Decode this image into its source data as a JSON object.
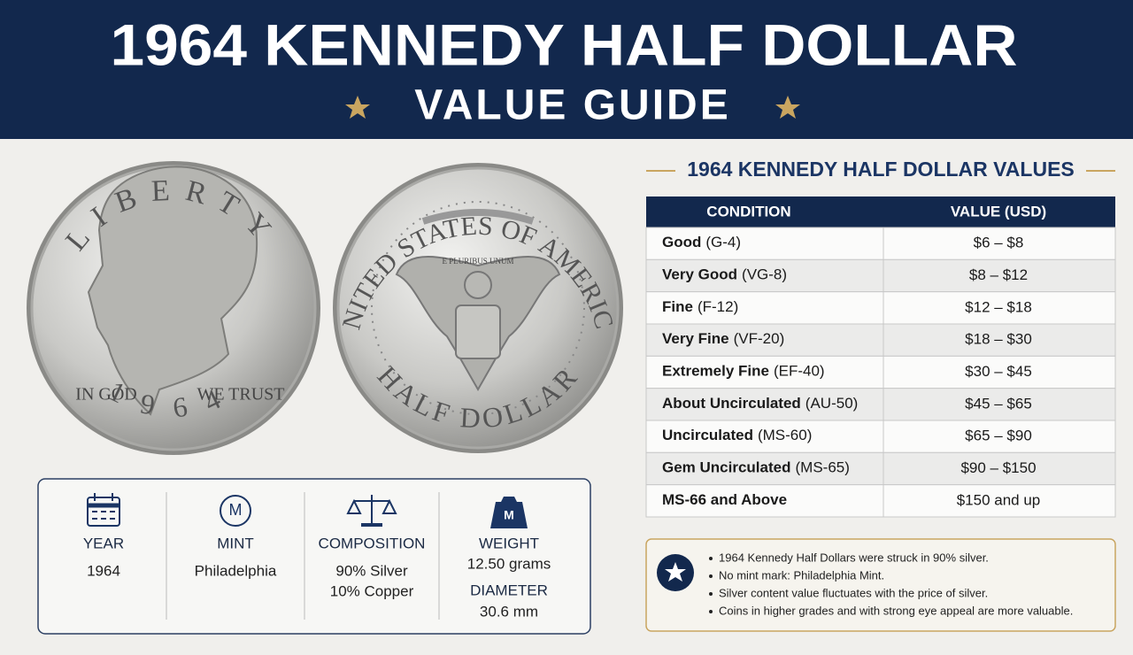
{
  "header": {
    "title": "1964 KENNEDY HALF DOLLAR",
    "subtitle": "VALUE GUIDE"
  },
  "obverse": {
    "top": "LIBERTY",
    "motto_left": "IN GOD",
    "motto_right": "WE TRUST",
    "year": "1964"
  },
  "reverse": {
    "top": "UNITED STATES OF AMERICA",
    "bottom": "HALF DOLLAR",
    "ribbon": "E PLURIBUS UNUM"
  },
  "specs": [
    {
      "label": "YEAR",
      "lines": [
        "1964"
      ]
    },
    {
      "label": "MINT",
      "icon": "M",
      "lines": [
        "Philadelphia"
      ]
    },
    {
      "label": "COMPOSITION",
      "lines": [
        "90% Silver",
        "10% Copper"
      ]
    },
    {
      "label": "WEIGHT",
      "icon": "M",
      "lines": [
        "12.50 grams"
      ]
    },
    {
      "label": "DIAMETER",
      "lines": [
        "30.6 mm"
      ]
    }
  ],
  "table": {
    "title": "1964 KENNEDY HALF DOLLAR VALUES",
    "columns": [
      "CONDITION",
      "VALUE (USD)"
    ],
    "rows": [
      {
        "grade": "Good",
        "code": "(G-4)",
        "value": "$6 – $8"
      },
      {
        "grade": "Very Good",
        "code": "(VG-8)",
        "value": "$8 – $12"
      },
      {
        "grade": "Fine",
        "code": "(F-12)",
        "value": "$12 – $18"
      },
      {
        "grade": "Very Fine",
        "code": "(VF-20)",
        "value": "$18 – $30"
      },
      {
        "grade": "Extremely Fine",
        "code": "(EF-40)",
        "value": "$30 – $45"
      },
      {
        "grade": "About Uncirculated",
        "code": "(AU-50)",
        "value": "$45 – $65"
      },
      {
        "grade": "Uncirculated",
        "code": "(MS-60)",
        "value": "$65 – $90"
      },
      {
        "grade": "Gem Uncirculated",
        "code": "(MS-65)",
        "value": "$90 – $150"
      },
      {
        "grade": "MS-66 and Above",
        "value": "$150 and up"
      }
    ]
  },
  "notes": [
    "1964 Kennedy Half Dollars were struck in 90% silver.",
    "No mint mark: Philadelphia Mint.",
    "Silver content value fluctuates with the price of silver.",
    "Coins in higher grades and with strong eye appeal are more valuable."
  ]
}
